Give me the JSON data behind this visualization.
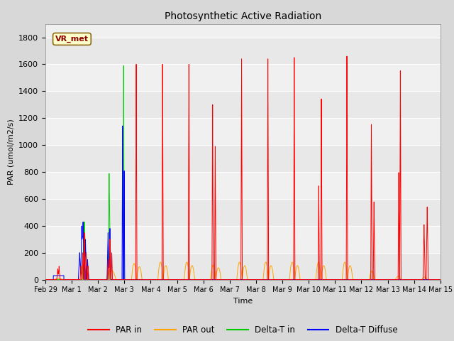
{
  "title": "Photosynthetic Active Radiation",
  "ylabel": "PAR (umol/m2/s)",
  "xlabel": "Time",
  "ylim": [
    0,
    1900
  ],
  "yticks": [
    0,
    200,
    400,
    600,
    800,
    1000,
    1200,
    1400,
    1600,
    1800
  ],
  "xtick_labels": [
    "Feb 29",
    "Mar 1",
    "Mar 2",
    "Mar 3",
    "Mar 4",
    "Mar 5",
    "Mar 6",
    "Mar 7",
    "Mar 8",
    "Mar 9",
    "Mar 10",
    "Mar 11",
    "Mar 12",
    "Mar 13",
    "Mar 14",
    "Mar 15"
  ],
  "legend_label": "VR_met",
  "colors": {
    "PAR_in": "#ff0000",
    "PAR_out": "#ffa500",
    "Delta_T_in": "#00cc00",
    "Delta_T_Diffuse": "#0000ff"
  },
  "fig_bg": "#d8d8d8",
  "plot_bg_bands": [
    "#e8e8e8",
    "#f0f0f0"
  ]
}
